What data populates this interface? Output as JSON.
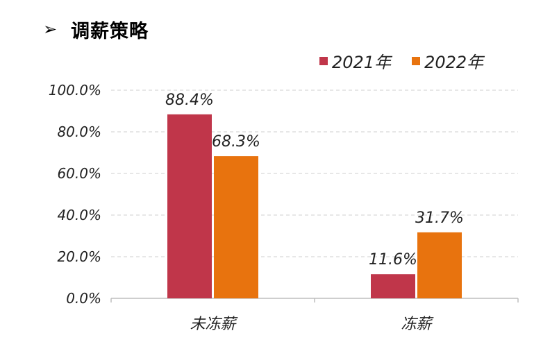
{
  "header": {
    "bullet": "➢",
    "title": "调薪策略"
  },
  "colors": {
    "series1": "#c0364a",
    "series2": "#e8730e",
    "grid": "#cfcfcf",
    "axis": "#bdbdbd"
  },
  "chart_data": {
    "type": "bar",
    "categories": [
      "未冻薪",
      "冻薪"
    ],
    "series": [
      {
        "name": "2021年",
        "values": [
          88.4,
          11.6
        ],
        "labels": [
          "88.4%",
          "11.6%"
        ]
      },
      {
        "name": "2022年",
        "values": [
          68.3,
          31.7
        ],
        "labels": [
          "68.3%",
          "31.7%"
        ]
      }
    ],
    "y_ticks": [
      "0.0%",
      "20.0%",
      "40.0%",
      "60.0%",
      "80.0%",
      "100.0%"
    ],
    "ylim": [
      0,
      100
    ],
    "grid": true,
    "legend_position": "top-right"
  }
}
